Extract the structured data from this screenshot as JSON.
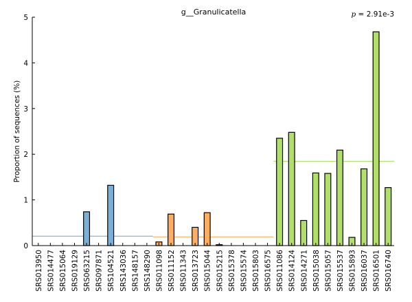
{
  "chart_data": {
    "type": "bar",
    "title": "g__Granulicatella",
    "annotation": {
      "prefix": "p",
      "text": " = 2.91e-3"
    },
    "ylabel": "Proportion of sequences (%)",
    "xlabel": "",
    "ylim": [
      0,
      5
    ],
    "yticks": [
      0,
      1,
      2,
      3,
      4,
      5
    ],
    "grid": false,
    "legend": "none",
    "categories": [
      "SRS013950",
      "SRS014477",
      "SRS015064",
      "SRS019129",
      "SRS063215",
      "SRS097871",
      "SRS104521",
      "SRS143036",
      "SRS148157",
      "SRS148290",
      "SRS011098",
      "SRS011152",
      "SRS011343",
      "SRS013723",
      "SRS015044",
      "SRS015215",
      "SRS015378",
      "SRS015574",
      "SRS015803",
      "SRS016575",
      "SRS011086",
      "SRS014124",
      "SRS014271",
      "SRS015038",
      "SRS015057",
      "SRS015537",
      "SRS015893",
      "SRS016037",
      "SRS016501",
      "SRS016740"
    ],
    "values": [
      0,
      0,
      0,
      0,
      0.74,
      0,
      1.32,
      0,
      0,
      0,
      0.08,
      0.69,
      0,
      0.4,
      0.72,
      0.02,
      0,
      0,
      0,
      0,
      2.35,
      2.48,
      0.55,
      1.59,
      1.58,
      2.09,
      0.18,
      1.68,
      4.68,
      1.27
    ],
    "groups": [
      {
        "start": 0,
        "end": 9,
        "color": "#7bafd4",
        "mean": 0.206
      },
      {
        "start": 10,
        "end": 19,
        "color": "#fdae61",
        "mean": 0.191
      },
      {
        "start": 20,
        "end": 29,
        "color": "#b2df6a",
        "mean": 1.845
      }
    ]
  }
}
